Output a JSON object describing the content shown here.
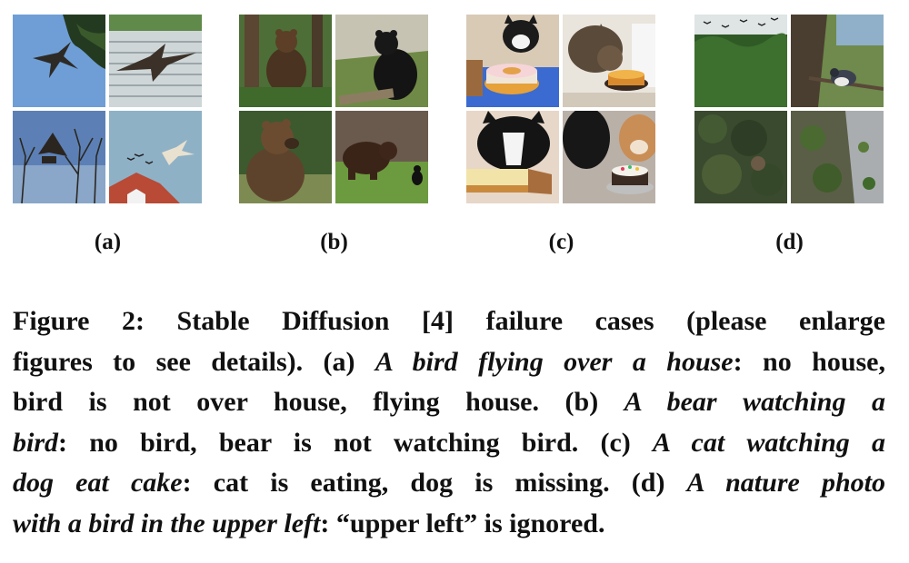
{
  "figure": {
    "panels": [
      {
        "label": "(a)",
        "images": [
          "bird-on-sky-image",
          "bird-over-shed-image",
          "bird-over-trees-image",
          "birds-over-roof-image"
        ]
      },
      {
        "label": "(b)",
        "images": [
          "bear-in-forest-image",
          "black-bear-image",
          "brown-bear-image",
          "bear-with-bird-image"
        ]
      },
      {
        "label": "(c)",
        "images": [
          "cat-with-cake-image",
          "cat-eating-cake-image",
          "cat-tasting-cake-image",
          "two-cats-cake-image"
        ]
      },
      {
        "label": "(d)",
        "images": [
          "forest-birds-image",
          "bird-on-branch-image",
          "aerial-forest-image",
          "aerial-rocks-image"
        ]
      }
    ],
    "caption": {
      "l1": "Figure 2: Stable Diffusion [4] failure cases (please enlarge",
      "l2a": "figures to see details). (a) ",
      "l2b": "A bird flying over a house",
      "l2c": ": no house,",
      "l3a": "bird is not over house, flying house. (b) ",
      "l3b": "A bear watching a",
      "l4a": "bird",
      "l4b": ": no bird, bear is not watching bird. (c) ",
      "l4c": "A cat watching a",
      "l5a": "dog eat cake",
      "l5b": ": cat is eating, dog is missing. (d) ",
      "l5c": "A nature photo",
      "l6a": "with a bird in the upper left",
      "l6b": ": “upper left” is ignored."
    }
  }
}
